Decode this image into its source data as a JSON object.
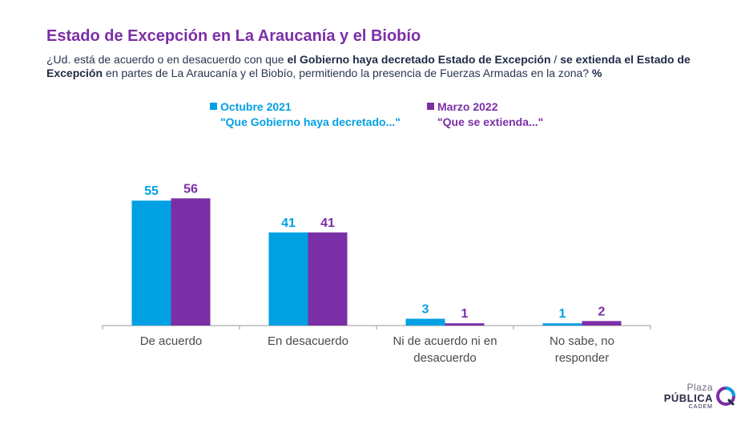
{
  "header": {
    "title": "Estado de Excepción en La Araucanía y el Biobío",
    "subtitle_parts": [
      {
        "text": "¿Ud. está de acuerdo o en desacuerdo con que ",
        "bold": false
      },
      {
        "text": "el Gobierno haya decretado Estado de Excepción",
        "bold": true
      },
      {
        "text": " / ",
        "bold": false
      },
      {
        "text": "se extienda el Estado de Excepción",
        "bold": true
      },
      {
        "text": " en partes de La Araucanía y el Biobío, permitiendo la presencia de Fuerzas Armadas en la zona? ",
        "bold": false
      },
      {
        "text": "%",
        "bold": true
      }
    ]
  },
  "legend": [
    {
      "label": "Octubre 2021",
      "sublabel": "\"Que Gobierno haya decretado...\"",
      "color": "#00a0e3"
    },
    {
      "label": "Marzo 2022",
      "sublabel": "\"Que se extienda...\"",
      "color": "#7b2fa6"
    }
  ],
  "chart_data": {
    "type": "bar",
    "categories": [
      "De acuerdo",
      "En desacuerdo",
      "Ni de acuerdo ni en desacuerdo",
      "No sabe, no responder"
    ],
    "category_lines": [
      [
        "De acuerdo"
      ],
      [
        "En desacuerdo"
      ],
      [
        "Ni de acuerdo ni en",
        "desacuerdo"
      ],
      [
        "No sabe, no",
        "responder"
      ]
    ],
    "series": [
      {
        "name": "Octubre 2021",
        "values": [
          55,
          41,
          3,
          1
        ],
        "color": "#00a0e3"
      },
      {
        "name": "Marzo 2022",
        "values": [
          56,
          41,
          1,
          2
        ],
        "color": "#7b2fa6"
      }
    ],
    "ylim": [
      0,
      60
    ],
    "grid": false,
    "legend_position": "top"
  },
  "logo": {
    "line1": "Plaza",
    "line2": "PÚBLICA",
    "line3": "CADEM"
  }
}
